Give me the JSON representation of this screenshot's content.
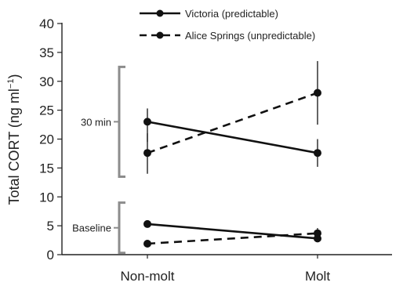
{
  "chart_data": {
    "type": "line",
    "title": "",
    "xlabel": "",
    "ylabel": "Total CORT (ng ml⁻¹)",
    "ylabel_main": "Total CORT (ng ml",
    "ylabel_sup": "−1",
    "ylabel_close": ")",
    "ylim": [
      0,
      40
    ],
    "yticks": [
      0,
      5,
      10,
      15,
      20,
      25,
      30,
      35,
      40
    ],
    "grid": false,
    "legend_position": "top",
    "categories": [
      "Non-molt",
      "Molt"
    ],
    "brackets": [
      {
        "label": "30 min",
        "range": [
          13.5,
          32.5
        ]
      },
      {
        "label": "Baseline",
        "range": [
          0.3,
          9.0
        ]
      }
    ],
    "series": [
      {
        "name": "Victoria (predictable)",
        "style": "solid",
        "group": "30 min",
        "values": [
          23.0,
          17.6
        ],
        "err_low": [
          19.5,
          15.2
        ],
        "err_high": [
          25.3,
          20.0
        ]
      },
      {
        "name": "Alice Springs (unpredictable)",
        "style": "dashed",
        "group": "30 min",
        "values": [
          17.6,
          28.0
        ],
        "err_low": [
          14.0,
          22.5
        ],
        "err_high": [
          21.0,
          33.5
        ]
      },
      {
        "name": "Victoria (predictable)",
        "style": "solid",
        "group": "Baseline",
        "values": [
          5.3,
          2.8
        ],
        "err_low": [
          null,
          null
        ],
        "err_high": [
          null,
          null
        ]
      },
      {
        "name": "Alice Springs (unpredictable)",
        "style": "dashed",
        "group": "Baseline",
        "values": [
          1.9,
          3.7
        ],
        "err_low": [
          null,
          2.9
        ],
        "err_high": [
          null,
          4.6
        ]
      }
    ],
    "legend": [
      {
        "name": "Victoria (predictable)",
        "style": "solid"
      },
      {
        "name": "Alice Springs (unpredictable)",
        "style": "dashed"
      }
    ]
  }
}
